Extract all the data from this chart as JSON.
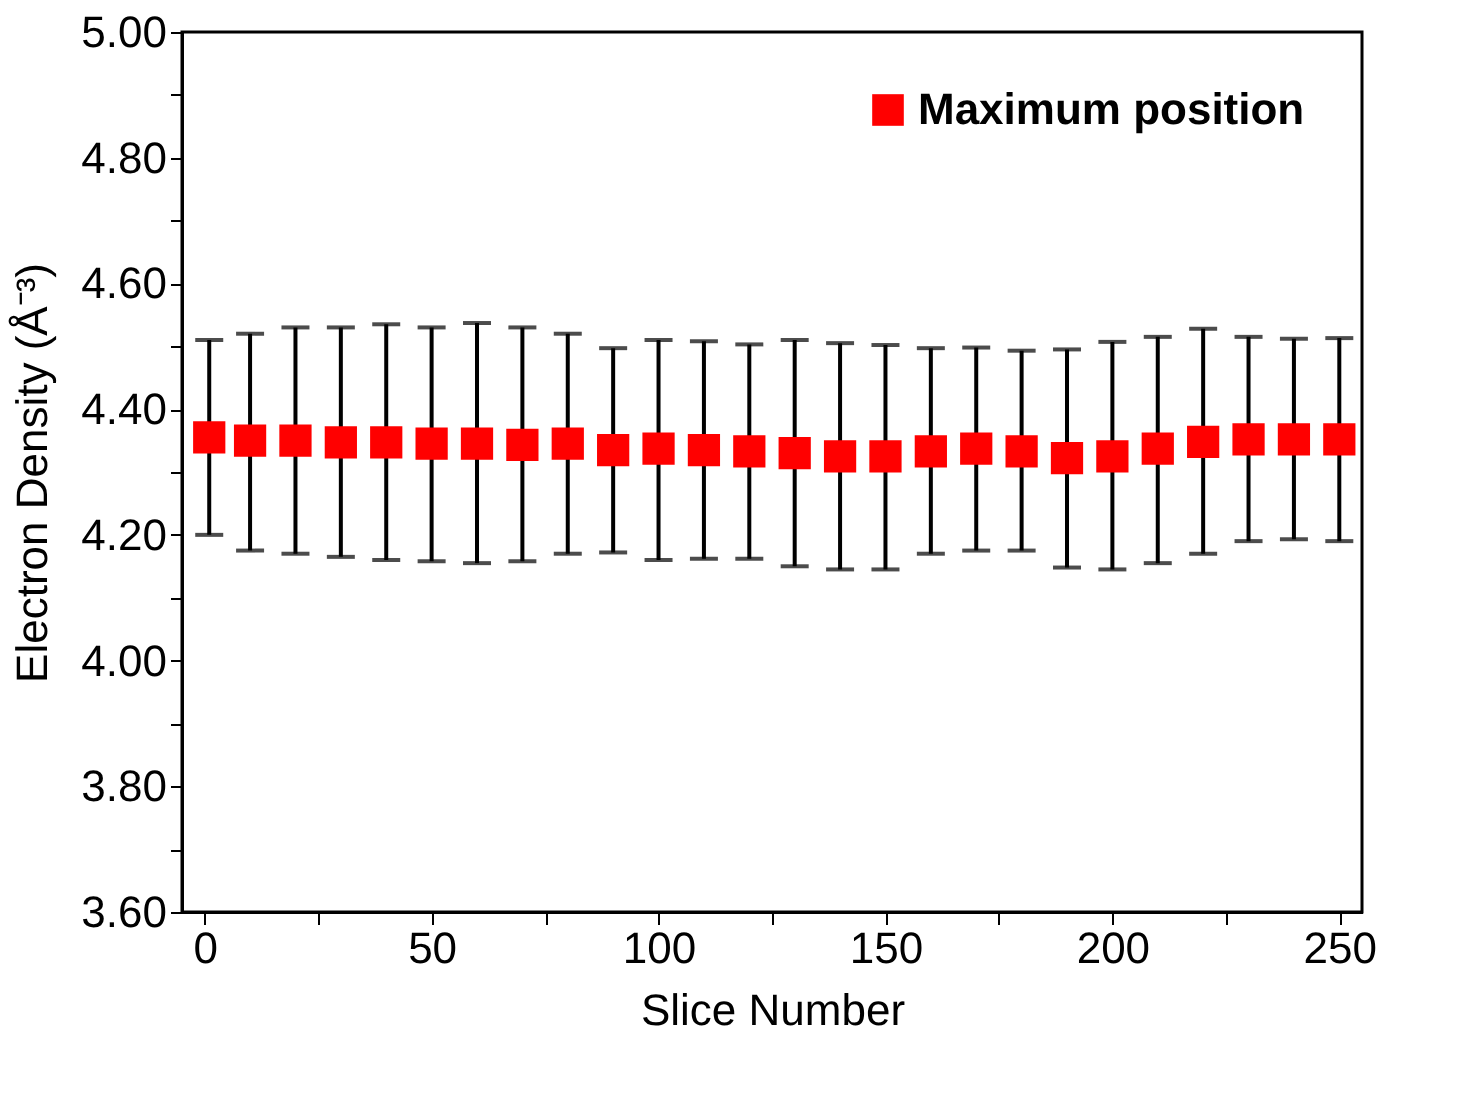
{
  "chart_data": {
    "type": "scatter",
    "xlabel": "Slice Number",
    "ylabel": "Electron Density (Å⁻³)",
    "x": [
      1,
      10,
      20,
      30,
      40,
      50,
      60,
      70,
      80,
      90,
      100,
      110,
      120,
      130,
      140,
      150,
      160,
      170,
      180,
      190,
      200,
      210,
      220,
      230,
      240,
      250
    ],
    "series": [
      {
        "name": "Maximum position",
        "color": "#ff0000",
        "marker": "square",
        "values": [
          4.355,
          4.35,
          4.35,
          4.347,
          4.347,
          4.345,
          4.345,
          4.343,
          4.345,
          4.335,
          4.337,
          4.335,
          4.333,
          4.33,
          4.325,
          4.325,
          4.333,
          4.337,
          4.333,
          4.322,
          4.325,
          4.337,
          4.348,
          4.352,
          4.352,
          4.352
        ],
        "errors": [
          [
            4.2,
            4.51
          ],
          [
            4.175,
            4.52
          ],
          [
            4.17,
            4.53
          ],
          [
            4.165,
            4.53
          ],
          [
            4.16,
            4.535
          ],
          [
            4.158,
            4.53
          ],
          [
            4.155,
            4.537
          ],
          [
            4.158,
            4.53
          ],
          [
            4.17,
            4.52
          ],
          [
            4.172,
            4.497
          ],
          [
            4.16,
            4.51
          ],
          [
            4.162,
            4.508
          ],
          [
            4.162,
            4.503
          ],
          [
            4.15,
            4.51
          ],
          [
            4.145,
            4.505
          ],
          [
            4.145,
            4.502
          ],
          [
            4.17,
            4.497
          ],
          [
            4.175,
            4.498
          ],
          [
            4.175,
            4.493
          ],
          [
            4.148,
            4.495
          ],
          [
            4.145,
            4.507
          ],
          [
            4.155,
            4.515
          ],
          [
            4.17,
            4.528
          ],
          [
            4.19,
            4.515
          ],
          [
            4.193,
            4.512
          ],
          [
            4.19,
            4.513
          ]
        ]
      }
    ],
    "xlim": [
      -5,
      255
    ],
    "xticks": [
      0,
      {
        "value": 25,
        "label": null
      },
      50,
      {
        "value": 75,
        "label": null
      },
      100,
      {
        "value": 125,
        "label": null
      },
      150,
      {
        "value": 175,
        "label": null
      },
      200,
      {
        "value": 225,
        "label": null
      },
      250
    ],
    "ylim": [
      3.6,
      5.0
    ],
    "yticks": [
      {
        "value": 3.6,
        "label": "3.60"
      },
      {
        "value": 3.7,
        "label": null
      },
      {
        "value": 3.8,
        "label": "3.80"
      },
      {
        "value": 3.9,
        "label": null
      },
      {
        "value": 4.0,
        "label": "4.00"
      },
      {
        "value": 4.1,
        "label": null
      },
      {
        "value": 4.2,
        "label": "4.20"
      },
      {
        "value": 4.3,
        "label": null
      },
      {
        "value": 4.4,
        "label": "4.40"
      },
      {
        "value": 4.5,
        "label": null
      },
      {
        "value": 4.6,
        "label": "4.60"
      },
      {
        "value": 4.7,
        "label": null
      },
      {
        "value": 4.8,
        "label": "4.80"
      },
      {
        "value": 4.9,
        "label": null
      },
      {
        "value": 5.0,
        "label": "5.00"
      }
    ],
    "grid": false,
    "legend": "top right"
  }
}
